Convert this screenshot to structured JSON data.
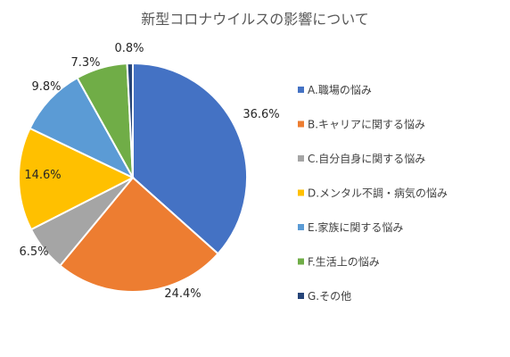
{
  "chart_data": {
    "type": "pie",
    "title": "新型コロナウイルスの影響について",
    "legend_position": "right",
    "slices": [
      {
        "label": "A.職場の悩み",
        "value": 36.6,
        "display": "36.6%",
        "color": "#4472C4"
      },
      {
        "label": "B.キャリアに関する悩み",
        "value": 24.4,
        "display": "24.4%",
        "color": "#ED7D31"
      },
      {
        "label": "C.自分自身に関する悩み",
        "value": 6.5,
        "display": "6.5%",
        "color": "#A5A5A5"
      },
      {
        "label": "D.メンタル不調・病気の悩み",
        "value": 14.6,
        "display": "14.6%",
        "color": "#FFC000"
      },
      {
        "label": "E.家族に関する悩み",
        "value": 9.8,
        "display": "9.8%",
        "color": "#5B9BD5"
      },
      {
        "label": "F.生活上の悩み",
        "value": 7.3,
        "display": "7.3%",
        "color": "#70AD47"
      },
      {
        "label": "G.その他",
        "value": 0.8,
        "display": "0.8%",
        "color": "#264478"
      }
    ]
  }
}
